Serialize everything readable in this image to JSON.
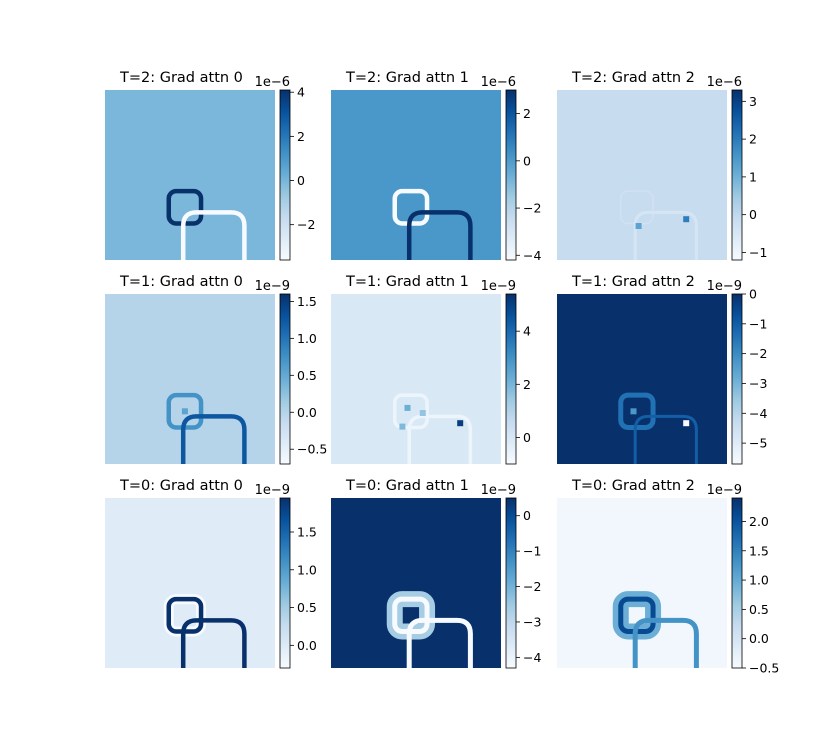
{
  "chart_data": [
    {
      "type": "heatmap",
      "title": "T=2: Grad attn 0",
      "colormap": "Blues",
      "grid": false,
      "background_level": 0.46,
      "colorbar": {
        "multiplier": "1e−6",
        "vmin": -3.6,
        "vmax": 4.1,
        "ticks": [
          {
            "value": -2,
            "label": "−2"
          },
          {
            "value": 0,
            "label": "0"
          },
          {
            "value": 2,
            "label": "2"
          },
          {
            "value": 4,
            "label": "4"
          }
        ]
      },
      "strokes": [
        {
          "shape": "circle",
          "cx": 0.47,
          "cy": 0.69,
          "r": 0.095,
          "level": 1.0,
          "width": 4.5
        },
        {
          "shape": "arch",
          "x1": 0.46,
          "x2": 0.82,
          "ytop": 0.72,
          "ybot": 1.0,
          "level": 0.0,
          "width": 4.5
        }
      ]
    },
    {
      "type": "heatmap",
      "title": "T=2: Grad attn 1",
      "colormap": "Blues",
      "grid": false,
      "background_level": 0.6,
      "colorbar": {
        "multiplier": "1e−6",
        "vmin": -4.2,
        "vmax": 3.0,
        "ticks": [
          {
            "value": -4,
            "label": "−4"
          },
          {
            "value": -2,
            "label": "−2"
          },
          {
            "value": 0,
            "label": "0"
          },
          {
            "value": 2,
            "label": "2"
          }
        ]
      },
      "strokes": [
        {
          "shape": "circle",
          "cx": 0.47,
          "cy": 0.69,
          "r": 0.095,
          "level": 0.0,
          "width": 4.5
        },
        {
          "shape": "arch",
          "x1": 0.46,
          "x2": 0.82,
          "ytop": 0.72,
          "ybot": 1.0,
          "level": 1.0,
          "width": 4.5
        }
      ]
    },
    {
      "type": "heatmap",
      "title": "T=2: Grad attn 2",
      "colormap": "Blues",
      "grid": false,
      "background_level": 0.24,
      "colorbar": {
        "multiplier": "1e−6",
        "vmin": -1.2,
        "vmax": 3.3,
        "ticks": [
          {
            "value": -1,
            "label": "−1"
          },
          {
            "value": 0,
            "label": "0"
          },
          {
            "value": 1,
            "label": "1"
          },
          {
            "value": 2,
            "label": "2"
          },
          {
            "value": 3,
            "label": "3"
          }
        ]
      },
      "strokes": [
        {
          "shape": "circle",
          "cx": 0.47,
          "cy": 0.69,
          "r": 0.095,
          "level": 0.2,
          "width": 1.5
        },
        {
          "shape": "arch",
          "x1": 0.46,
          "x2": 0.82,
          "ytop": 0.72,
          "ybot": 1.0,
          "level": 0.17,
          "width": 3.0
        }
      ],
      "spots": [
        {
          "x": 0.76,
          "y": 0.76,
          "level": 0.7
        },
        {
          "x": 0.48,
          "y": 0.8,
          "level": 0.55
        }
      ]
    },
    {
      "type": "heatmap",
      "title": "T=1: Grad attn 0",
      "colormap": "Blues",
      "grid": false,
      "background_level": 0.3,
      "colorbar": {
        "multiplier": "1e−9",
        "vmin": -0.7,
        "vmax": 1.6,
        "ticks": [
          {
            "value": -0.5,
            "label": "−0.5"
          },
          {
            "value": 0.0,
            "label": "0.0"
          },
          {
            "value": 0.5,
            "label": "0.5"
          },
          {
            "value": 1.0,
            "label": "1.0"
          },
          {
            "value": 1.5,
            "label": "1.5"
          }
        ]
      },
      "strokes": [
        {
          "shape": "circle",
          "cx": 0.47,
          "cy": 0.69,
          "r": 0.095,
          "level": 0.62,
          "width": 4.5
        },
        {
          "shape": "arch",
          "x1": 0.46,
          "x2": 0.82,
          "ytop": 0.72,
          "ybot": 1.0,
          "level": 0.85,
          "width": 4.5
        }
      ],
      "spots": [
        {
          "x": 0.47,
          "y": 0.69,
          "level": 0.55
        }
      ]
    },
    {
      "type": "heatmap",
      "title": "T=1: Grad attn 1",
      "colormap": "Blues",
      "grid": false,
      "background_level": 0.15,
      "colorbar": {
        "multiplier": "1e−9",
        "vmin": -1.0,
        "vmax": 5.4,
        "ticks": [
          {
            "value": 0,
            "label": "0"
          },
          {
            "value": 2,
            "label": "2"
          },
          {
            "value": 4,
            "label": "4"
          }
        ]
      },
      "strokes": [
        {
          "shape": "circle",
          "cx": 0.47,
          "cy": 0.69,
          "r": 0.095,
          "level": 0.05,
          "width": 3.5
        },
        {
          "shape": "arch",
          "x1": 0.46,
          "x2": 0.82,
          "ytop": 0.72,
          "ybot": 1.0,
          "level": 0.05,
          "width": 3.5
        }
      ],
      "spots": [
        {
          "x": 0.76,
          "y": 0.76,
          "level": 0.95
        },
        {
          "x": 0.45,
          "y": 0.67,
          "level": 0.5
        },
        {
          "x": 0.42,
          "y": 0.78,
          "level": 0.45
        },
        {
          "x": 0.54,
          "y": 0.7,
          "level": 0.4
        }
      ]
    },
    {
      "type": "heatmap",
      "title": "T=1: Grad attn 2",
      "colormap": "Blues",
      "grid": false,
      "background_level": 1.0,
      "colorbar": {
        "multiplier": "1e−9",
        "vmin": -5.7,
        "vmax": 0.0,
        "ticks": [
          {
            "value": -5,
            "label": "−5"
          },
          {
            "value": -4,
            "label": "−4"
          },
          {
            "value": -3,
            "label": "−3"
          },
          {
            "value": -2,
            "label": "−2"
          },
          {
            "value": -1,
            "label": "−1"
          },
          {
            "value": 0,
            "label": "0"
          }
        ]
      },
      "strokes": [
        {
          "shape": "circle",
          "cx": 0.47,
          "cy": 0.69,
          "r": 0.095,
          "level": 0.75,
          "width": 5.0
        },
        {
          "shape": "arch",
          "x1": 0.46,
          "x2": 0.82,
          "ytop": 0.72,
          "ybot": 1.0,
          "level": 0.82,
          "width": 3.0
        }
      ],
      "spots": [
        {
          "x": 0.76,
          "y": 0.76,
          "level": 0.0
        },
        {
          "x": 0.45,
          "y": 0.69,
          "level": 0.6
        }
      ]
    },
    {
      "type": "heatmap",
      "title": "T=0: Grad attn 0",
      "colormap": "Blues",
      "grid": false,
      "background_level": 0.12,
      "colorbar": {
        "multiplier": "1e−9",
        "vmin": -0.3,
        "vmax": 1.95,
        "ticks": [
          {
            "value": 0.0,
            "label": "0.0"
          },
          {
            "value": 0.5,
            "label": "0.5"
          },
          {
            "value": 1.0,
            "label": "1.0"
          },
          {
            "value": 1.5,
            "label": "1.5"
          }
        ]
      },
      "strokes": [
        {
          "shape": "halo",
          "cx": 0.47,
          "cy": 0.69,
          "r": 0.095,
          "level": 0.0,
          "width": 10
        },
        {
          "shape": "circle",
          "cx": 0.47,
          "cy": 0.69,
          "r": 0.095,
          "level": 1.0,
          "width": 4.5
        },
        {
          "shape": "arch",
          "x1": 0.46,
          "x2": 0.82,
          "ytop": 0.72,
          "ybot": 1.0,
          "level": 1.0,
          "width": 4.5
        }
      ]
    },
    {
      "type": "heatmap",
      "title": "T=0: Grad attn 1",
      "colormap": "Blues",
      "grid": false,
      "background_level": 1.0,
      "colorbar": {
        "multiplier": "1e−9",
        "vmin": -4.3,
        "vmax": 0.5,
        "ticks": [
          {
            "value": -4,
            "label": "−4"
          },
          {
            "value": -3,
            "label": "−3"
          },
          {
            "value": -2,
            "label": "−2"
          },
          {
            "value": -1,
            "label": "−1"
          },
          {
            "value": 0,
            "label": "0"
          }
        ]
      },
      "strokes": [
        {
          "shape": "halo",
          "cx": 0.47,
          "cy": 0.69,
          "r": 0.095,
          "level": 0.35,
          "width": 16
        },
        {
          "shape": "circle",
          "cx": 0.47,
          "cy": 0.69,
          "r": 0.095,
          "level": 0.0,
          "width": 5.0
        },
        {
          "shape": "arch",
          "x1": 0.46,
          "x2": 0.82,
          "ytop": 0.72,
          "ybot": 1.0,
          "level": 0.0,
          "width": 5.0
        }
      ]
    },
    {
      "type": "heatmap",
      "title": "T=0: Grad attn 2",
      "colormap": "Blues",
      "grid": false,
      "background_level": 0.03,
      "colorbar": {
        "multiplier": "1e−9",
        "vmin": -0.5,
        "vmax": 2.4,
        "ticks": [
          {
            "value": -0.5,
            "label": "−0.5"
          },
          {
            "value": 0.0,
            "label": "0.0"
          },
          {
            "value": 0.5,
            "label": "0.5"
          },
          {
            "value": 1.0,
            "label": "1.0"
          },
          {
            "value": 1.5,
            "label": "1.5"
          },
          {
            "value": 2.0,
            "label": "2.0"
          }
        ]
      },
      "strokes": [
        {
          "shape": "halo",
          "cx": 0.47,
          "cy": 0.69,
          "r": 0.095,
          "level": 0.5,
          "width": 16
        },
        {
          "shape": "circle",
          "cx": 0.47,
          "cy": 0.69,
          "r": 0.095,
          "level": 0.9,
          "width": 5.0
        },
        {
          "shape": "arch",
          "x1": 0.46,
          "x2": 0.82,
          "ytop": 0.72,
          "ybot": 1.0,
          "level": 0.62,
          "width": 5.0
        }
      ]
    }
  ]
}
